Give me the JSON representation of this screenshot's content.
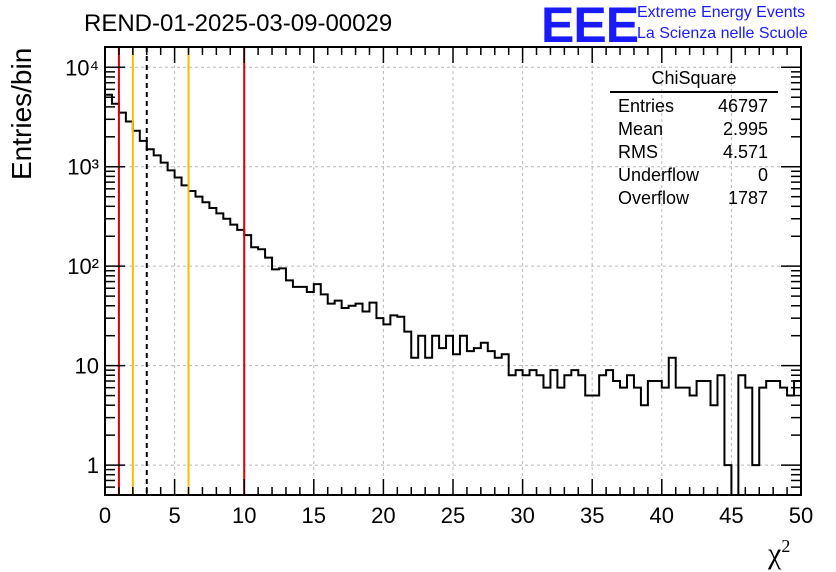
{
  "title": "REND-01-2025-03-09-00029",
  "logo": {
    "letters": "EEE",
    "line1": "Extreme Energy Events",
    "line2": "La Scienza nelle Scuole",
    "color": "#1a1aff"
  },
  "stats_box": {
    "title": "ChiSquare",
    "rows": [
      {
        "label": "Entries",
        "value": "46797"
      },
      {
        "label": "Mean",
        "value": "2.995"
      },
      {
        "label": "RMS",
        "value": "4.571"
      },
      {
        "label": "Underflow",
        "value": "0"
      },
      {
        "label": "Overflow",
        "value": "1787"
      }
    ]
  },
  "chart_data": {
    "type": "histogram",
    "title": "REND-01-2025-03-09-00029",
    "xlabel": "χ",
    "xlabel_superscript": "2",
    "ylabel": "Entries/bin",
    "xlim": [
      0,
      50
    ],
    "ylim": [
      0.5,
      16000
    ],
    "yscale": "log",
    "grid": true,
    "bin_width": 0.5,
    "x_ticks": [
      "0",
      "5",
      "10",
      "15",
      "20",
      "25",
      "30",
      "35",
      "40",
      "45",
      "50"
    ],
    "y_ticks": [
      {
        "value": 1,
        "label": "1"
      },
      {
        "value": 10,
        "label": "10"
      },
      {
        "value": 100,
        "label": "10²"
      },
      {
        "value": 1000,
        "label": "10³"
      },
      {
        "value": 10000,
        "label": "10⁴"
      }
    ],
    "values": [
      5300,
      4300,
      3500,
      2850,
      2300,
      1820,
      1500,
      1300,
      1100,
      920,
      780,
      650,
      570,
      500,
      440,
      385,
      340,
      300,
      262,
      232,
      205,
      155,
      148,
      122,
      93,
      95,
      72,
      62,
      62,
      55,
      66,
      52,
      42,
      45,
      38,
      40,
      42,
      35,
      43,
      30,
      26,
      32,
      31,
      22,
      12,
      20,
      12,
      20,
      15,
      20,
      13,
      20,
      14,
      15,
      17,
      14,
      12,
      13,
      8,
      9,
      8,
      9,
      8,
      6,
      9,
      6,
      8,
      9,
      8,
      5,
      5,
      8,
      9,
      7,
      6,
      8,
      6,
      4,
      7,
      7,
      6,
      12,
      6,
      6,
      5,
      7,
      7,
      4,
      8,
      1,
      0.4,
      8,
      6,
      1,
      6,
      7,
      7,
      6,
      5,
      7
    ],
    "vertical_lines": [
      {
        "x": 1,
        "color": "#e00000",
        "style": "solid"
      },
      {
        "x": 2,
        "color": "#f0c000",
        "style": "solid"
      },
      {
        "x": 3,
        "color": "#000000",
        "style": "dashed"
      },
      {
        "x": 6,
        "color": "#f0c000",
        "style": "solid"
      },
      {
        "x": 10,
        "color": "#e00000",
        "style": "solid"
      }
    ]
  }
}
